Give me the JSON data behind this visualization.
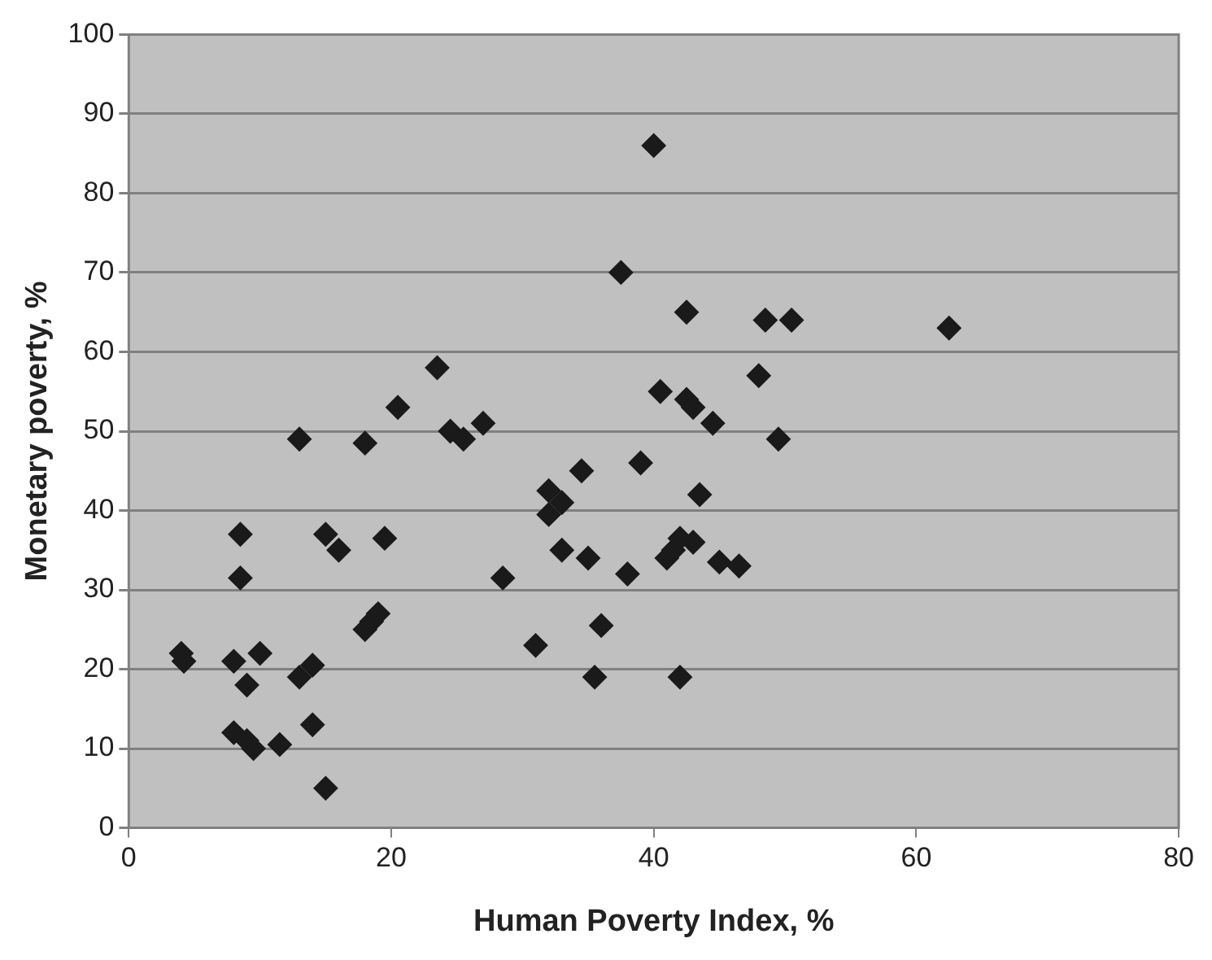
{
  "chart_data": {
    "type": "scatter",
    "xlabel": "Human Poverty Index, %",
    "ylabel": "Monetary poverty, %",
    "x": [
      4,
      4.2,
      8,
      8.5,
      8.5,
      8,
      9,
      9,
      9.5,
      10,
      11.5,
      13,
      13,
      14,
      14,
      15,
      15,
      16,
      18,
      18,
      18.5,
      19,
      19.5,
      20.5,
      23.5,
      24.5,
      25.5,
      27,
      28.5,
      31,
      32,
      32,
      33,
      33,
      34.5,
      35,
      35.5,
      36,
      37.5,
      38,
      39,
      40,
      40.5,
      41,
      41.5,
      42,
      42,
      42.5,
      42.5,
      43,
      43,
      43.5,
      44.5,
      45,
      46.5,
      48,
      48.5,
      49.5,
      50.5,
      62.5
    ],
    "series": [
      {
        "color": "#1a1a1a",
        "values": [
          22,
          21,
          21,
          37,
          31.5,
          12,
          11,
          18,
          10,
          22,
          10.5,
          49,
          19,
          20.5,
          13,
          5,
          37,
          35,
          48.5,
          25,
          26,
          27,
          36.5,
          53,
          58,
          50,
          49,
          51,
          31.5,
          23,
          39.5,
          42.5,
          41,
          35,
          45,
          34,
          19,
          25.5,
          70,
          32,
          46,
          86,
          55,
          34,
          35,
          19,
          36.5,
          65,
          54,
          53,
          36,
          42,
          51,
          33.5,
          33,
          57,
          64,
          49,
          64,
          63
        ]
      }
    ],
    "xlim": [
      0,
      80
    ],
    "xticks": [
      0,
      20,
      40,
      60,
      80
    ],
    "ylim": [
      0,
      100
    ],
    "yticks": [
      0,
      10,
      20,
      30,
      40,
      50,
      60,
      70,
      80,
      90,
      100
    ],
    "grid": "y",
    "legend": false,
    "marker": "diamond"
  }
}
